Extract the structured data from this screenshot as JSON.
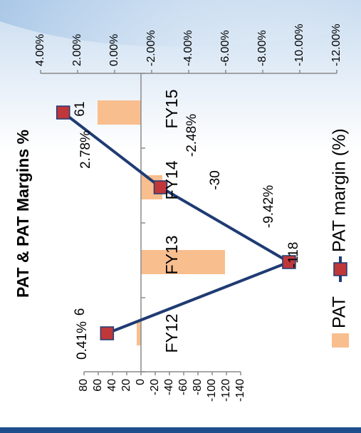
{
  "chart_data": {
    "type": "bar",
    "orientation": "rotated-90-ccw",
    "title": "PAT & PAT Margins %",
    "categories": [
      "FY12",
      "FY13",
      "FY14",
      "FY15"
    ],
    "series": [
      {
        "name": "PAT",
        "kind": "bar",
        "axis": "primary",
        "color": "#f9be8e",
        "values": [
          6,
          -118,
          -30,
          61
        ]
      },
      {
        "name": "PAT margin (%)",
        "kind": "line",
        "axis": "secondary",
        "color": "#1f3b73",
        "marker_color": "#c0373a",
        "values": [
          0.41,
          -9.42,
          -2.48,
          2.78
        ]
      }
    ],
    "bar_labels": [
      "6",
      "-118",
      "-30",
      "61"
    ],
    "line_labels": [
      "0.41%",
      "-9.42%",
      "-2.48%",
      "2.78%"
    ],
    "primary_axis": {
      "ylim": [
        -140,
        80
      ],
      "ticks": [
        "80",
        "60",
        "40",
        "20",
        "0",
        "-20",
        "-40",
        "-60",
        "-80",
        "-100",
        "-120",
        "-140"
      ]
    },
    "secondary_axis": {
      "ylim": [
        -12,
        4
      ],
      "reversed": true,
      "ticks": [
        "4.00%",
        "2.00%",
        "0.00%",
        "-2.00%",
        "-4.00%",
        "-6.00%",
        "-8.00%",
        "-10.00%",
        "-12.00%"
      ]
    },
    "legend": {
      "position": "bottom",
      "items": [
        "PAT",
        "PAT margin (%)"
      ]
    },
    "grid": false
  }
}
